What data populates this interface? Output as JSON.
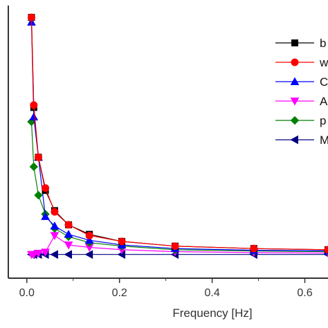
{
  "chart_data": {
    "type": "line",
    "xlabel": "Frequency [Hz]",
    "ylabel": "",
    "title": "",
    "xlim": [
      -0.04,
      0.65
    ],
    "ylim": [
      -0.1,
      1.05
    ],
    "xticks": [
      {
        "value": 0.0,
        "label": "0.0"
      },
      {
        "value": 0.2,
        "label": "0.2"
      },
      {
        "value": 0.4,
        "label": "0.4"
      },
      {
        "value": 0.6,
        "label": "0.6"
      }
    ],
    "legend_position": "top-right",
    "grid": false,
    "series": [
      {
        "name": "b",
        "color": "#000000",
        "marker": "square",
        "markerFill": "#000000",
        "lineColor": "#000000",
        "x": [
          0.01,
          0.015,
          0.025,
          0.04,
          0.06,
          0.09,
          0.135,
          0.205,
          0.32,
          0.49,
          0.65
        ],
        "y": [
          1.0,
          0.62,
          0.41,
          0.27,
          0.185,
          0.125,
          0.085,
          0.055,
          0.035,
          0.025,
          0.02
        ]
      },
      {
        "name": "w",
        "color": "#ff0000",
        "marker": "circle",
        "markerFill": "#ff0000",
        "lineColor": "#ff0000",
        "x": [
          0.01,
          0.015,
          0.025,
          0.04,
          0.06,
          0.09,
          0.135,
          0.205,
          0.32,
          0.49,
          0.65
        ],
        "y": [
          1.0,
          0.63,
          0.41,
          0.28,
          0.18,
          0.125,
          0.08,
          0.055,
          0.035,
          0.025,
          0.02
        ]
      },
      {
        "name": "C",
        "color": "#0000ff",
        "marker": "triangle-up",
        "markerFill": "#0000ff",
        "lineColor": "#0000ff",
        "x": [
          0.01,
          0.015,
          0.025,
          0.04,
          0.06,
          0.09,
          0.135,
          0.205,
          0.32,
          0.49,
          0.65
        ],
        "y": [
          0.98,
          0.58,
          0.41,
          0.16,
          0.12,
          0.085,
          0.06,
          0.04,
          0.025,
          0.018,
          0.015
        ]
      },
      {
        "name": "A",
        "color": "#ff00ff",
        "marker": "triangle-down",
        "markerFill": "#ff00ff",
        "lineColor": "#ff00ff",
        "x": [
          0.01,
          0.015,
          0.025,
          0.04,
          0.06,
          0.09,
          0.135,
          0.205,
          0.32,
          0.49,
          0.65
        ],
        "y": [
          0.0,
          0.0,
          0.005,
          0.01,
          0.08,
          0.04,
          0.03,
          0.02,
          0.012,
          0.008,
          0.006
        ]
      },
      {
        "name": "p",
        "color": "#008000",
        "marker": "diamond",
        "markerFill": "#008000",
        "lineColor": "#008000",
        "x": [
          0.01,
          0.015,
          0.025,
          0.04,
          0.06,
          0.09,
          0.135,
          0.205,
          0.32,
          0.49,
          0.65
        ],
        "y": [
          0.56,
          0.37,
          0.25,
          0.17,
          0.11,
          0.075,
          0.05,
          0.035,
          0.02,
          0.015,
          0.012
        ]
      },
      {
        "name": "M",
        "color": "#000080",
        "marker": "triangle-left",
        "markerFill": "#000080",
        "lineColor": "#000080",
        "x": [
          0.01,
          0.015,
          0.025,
          0.04,
          0.06,
          0.09,
          0.135,
          0.205,
          0.32,
          0.49,
          0.65
        ],
        "y": [
          0.0,
          0.0,
          0.0,
          0.0,
          0.0,
          0.0,
          0.0,
          0.0,
          0.0,
          0.0,
          0.0
        ]
      }
    ]
  }
}
